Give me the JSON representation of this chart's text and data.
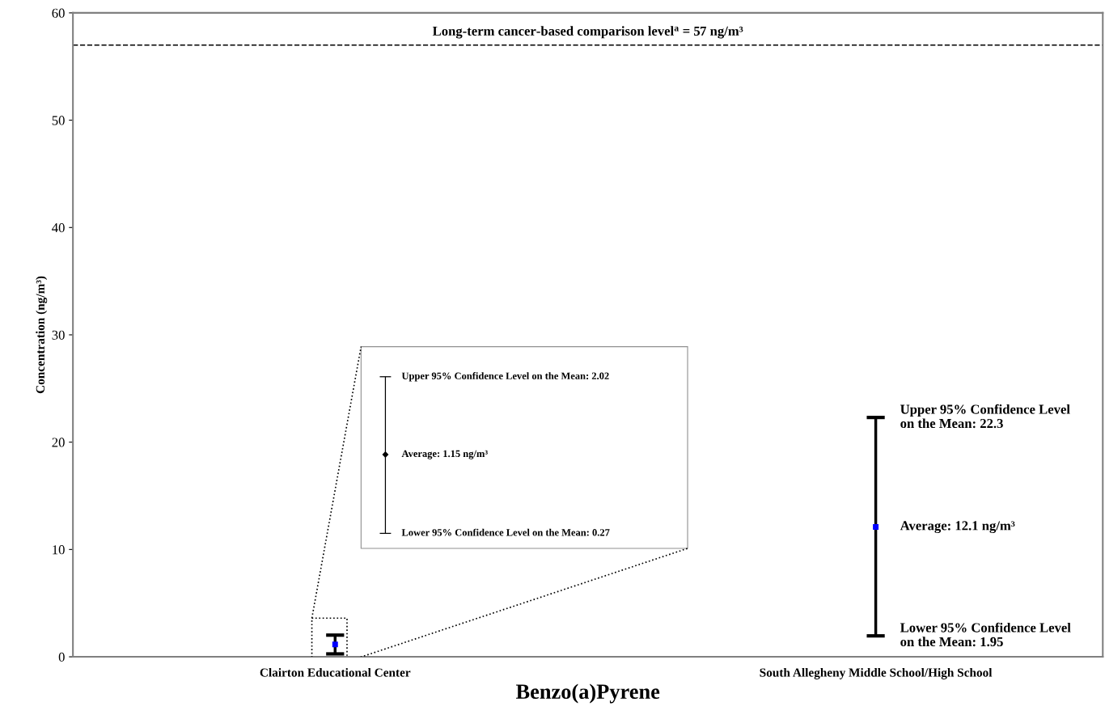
{
  "chart_data": {
    "type": "scatter",
    "xlabel": "Benzo(a)Pyrene",
    "ylabel": "Concentration (ng/m³)",
    "categories": [
      "Clairton Educational Center",
      "South Allegheny Middle School/High School"
    ],
    "values": [
      1.15,
      12.1
    ],
    "errors": [
      [
        0.27,
        2.02
      ],
      [
        1.95,
        22.3
      ]
    ],
    "color": "#0000ff",
    "marker": "square",
    "ylim": [
      0,
      60
    ],
    "yticks": [
      0,
      10,
      20,
      30,
      40,
      50,
      60
    ],
    "grid": false,
    "ref_lines": [
      {
        "axis": "y",
        "value": 57,
        "label": "Long-term cancer-based comparison level$^{a}$ = 57 ng/m³",
        "color": "#000000",
        "line_style": "dashed"
      }
    ],
    "annotations": [
      "Upper 95% Confidence Level on the Mean: 2.02",
      "Average: 1.15 ng/m³",
      "Lower 95% Confidence Level on the Mean: 0.27",
      {
        "text": "Upper 95% Confidence Level\non the Mean: 22.3",
        "x": "South Allegheny Middle School/High School",
        "y": 22.3
      },
      {
        "text": "Average: 12.1 ng/m³",
        "x": "South Allegheny Middle School/High School",
        "y": 12.1
      },
      {
        "text": "Lower 95% Confidence Level\non the Mean: 1.95",
        "x": "South Allegheny Middle School/High School",
        "y": 1.95
      }
    ]
  }
}
